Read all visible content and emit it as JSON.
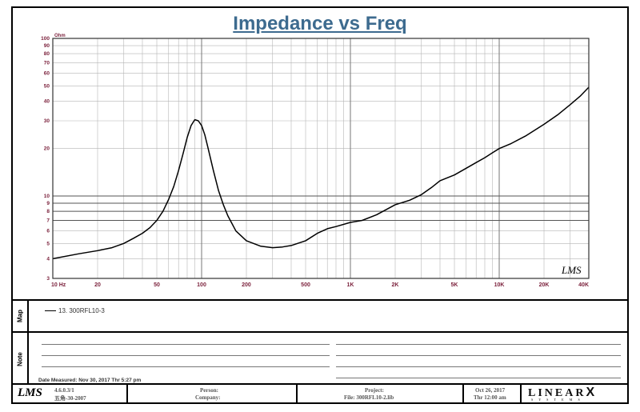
{
  "chart_data": {
    "type": "line",
    "title": "Impedance vs Freq",
    "xscale": "log",
    "yscale": "log",
    "xlim": [
      10,
      40000
    ],
    "ylim": [
      3,
      100
    ],
    "yunit": "Ohm",
    "grid": true,
    "x_tick_labels": [
      {
        "v": 10,
        "t": "10 Hz"
      },
      {
        "v": 20,
        "t": "20"
      },
      {
        "v": 50,
        "t": "50"
      },
      {
        "v": 100,
        "t": "100"
      },
      {
        "v": 200,
        "t": "200"
      },
      {
        "v": 500,
        "t": "500"
      },
      {
        "v": 1000,
        "t": "1K"
      },
      {
        "v": 2000,
        "t": "2K"
      },
      {
        "v": 5000,
        "t": "5K"
      },
      {
        "v": 10000,
        "t": "10K"
      },
      {
        "v": 20000,
        "t": "20K"
      },
      {
        "v": 40000,
        "t": "40K"
      }
    ],
    "y_tick_labels": [
      {
        "v": 3,
        "t": "3"
      },
      {
        "v": 4,
        "t": "4"
      },
      {
        "v": 5,
        "t": "5"
      },
      {
        "v": 6,
        "t": "6"
      },
      {
        "v": 7,
        "t": "7"
      },
      {
        "v": 8,
        "t": "8"
      },
      {
        "v": 9,
        "t": "9"
      },
      {
        "v": 10,
        "t": "10"
      },
      {
        "v": 20,
        "t": "20"
      },
      {
        "v": 30,
        "t": "30"
      },
      {
        "v": 40,
        "t": "40"
      },
      {
        "v": 50,
        "t": "50"
      },
      {
        "v": 60,
        "t": "60"
      },
      {
        "v": 70,
        "t": "70"
      },
      {
        "v": 80,
        "t": "80"
      },
      {
        "v": 90,
        "t": "90"
      },
      {
        "v": 100,
        "t": "100"
      }
    ],
    "y_heavy_lines": [
      7,
      8,
      9,
      10
    ],
    "series": [
      {
        "name": "13. 300RFL10-3",
        "color": "#000000",
        "points": [
          [
            10,
            4.0
          ],
          [
            15,
            4.3
          ],
          [
            20,
            4.5
          ],
          [
            25,
            4.7
          ],
          [
            30,
            5.0
          ],
          [
            35,
            5.4
          ],
          [
            40,
            5.8
          ],
          [
            45,
            6.3
          ],
          [
            50,
            7.0
          ],
          [
            55,
            8.0
          ],
          [
            60,
            9.5
          ],
          [
            65,
            11.5
          ],
          [
            70,
            14.5
          ],
          [
            75,
            18.5
          ],
          [
            80,
            23.5
          ],
          [
            85,
            28.0
          ],
          [
            90,
            30.5
          ],
          [
            95,
            30.0
          ],
          [
            100,
            28.0
          ],
          [
            105,
            24.5
          ],
          [
            110,
            20.5
          ],
          [
            120,
            14.5
          ],
          [
            130,
            10.8
          ],
          [
            140,
            8.8
          ],
          [
            150,
            7.5
          ],
          [
            170,
            6.0
          ],
          [
            200,
            5.2
          ],
          [
            250,
            4.8
          ],
          [
            300,
            4.7
          ],
          [
            350,
            4.75
          ],
          [
            400,
            4.85
          ],
          [
            500,
            5.2
          ],
          [
            600,
            5.8
          ],
          [
            700,
            6.2
          ],
          [
            800,
            6.4
          ],
          [
            1000,
            6.8
          ],
          [
            1200,
            7.0
          ],
          [
            1500,
            7.6
          ],
          [
            2000,
            8.8
          ],
          [
            2500,
            9.4
          ],
          [
            3000,
            10.2
          ],
          [
            3500,
            11.3
          ],
          [
            4000,
            12.5
          ],
          [
            5000,
            13.6
          ],
          [
            6000,
            15.0
          ],
          [
            7000,
            16.3
          ],
          [
            8000,
            17.5
          ],
          [
            9000,
            18.8
          ],
          [
            10000,
            20.0
          ],
          [
            12000,
            21.5
          ],
          [
            15000,
            24.0
          ],
          [
            20000,
            28.5
          ],
          [
            25000,
            33.0
          ],
          [
            30000,
            38.0
          ],
          [
            35000,
            43.0
          ],
          [
            40000,
            49.0
          ]
        ]
      }
    ]
  },
  "watermark": "LMS",
  "map": {
    "label": "Map",
    "legend_text": "13. 300RFL10-3"
  },
  "note": {
    "label": "Note",
    "date_measured": "Date Measured: Nov 30, 2017  Thr  5:27 pm"
  },
  "footer": {
    "version": "4.6.0.3/1",
    "serial": "五角-30-2007",
    "person_label": "Person:",
    "company_label": "Company:",
    "project_label": "Project:",
    "file_label": "File: 300RFL10-2.lib",
    "date": "Oct 26, 2017",
    "time": "Thr 12:00 am",
    "logo": "LMS",
    "brand": "LINEAR",
    "brand_x": "X",
    "brand_sub": "SYSTEMS"
  }
}
